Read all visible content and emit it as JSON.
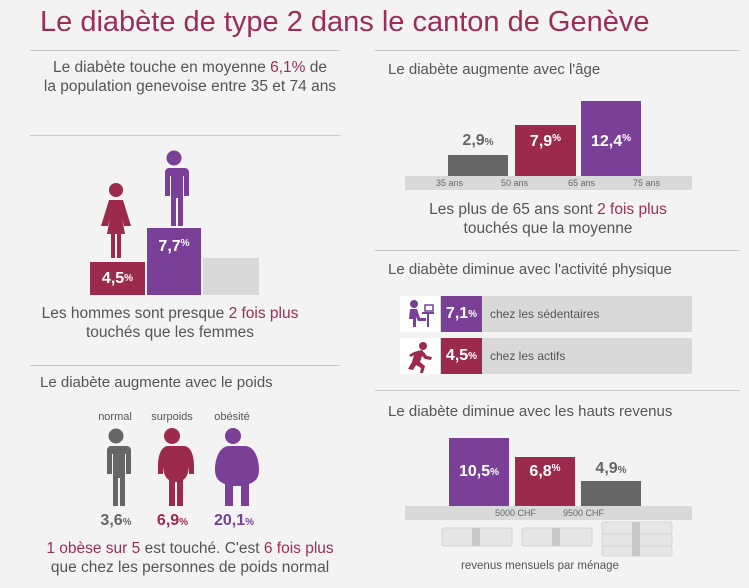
{
  "title": "Le diabète de type 2 dans le canton de Genève",
  "colors": {
    "accent": "#9b2d57",
    "gray": "#666666",
    "crimson": "#9c2a4c",
    "purple": "#7a3f96",
    "band": "#d9d9d9"
  },
  "average": {
    "line1_pre": "Le diabète touche en moyenne ",
    "line1_hl": "6,1%",
    "line1_post": " de",
    "line2": "la population genevoise entre 35 et 74 ans"
  },
  "gender": {
    "women": {
      "value": "4,5",
      "unit": "%",
      "icon": "woman-icon"
    },
    "men": {
      "value": "7,7",
      "unit": "%",
      "icon": "man-icon"
    },
    "caption_pre": "Les hommes sont presque ",
    "caption_hl": "2 fois plus",
    "caption_line2": "touchés que les femmes"
  },
  "weight": {
    "heading": "Le diabète augmente avec le poids",
    "groups": [
      {
        "label": "normal",
        "value": "3,6",
        "unit": "%"
      },
      {
        "label": "surpoids",
        "value": "6,9",
        "unit": "%"
      },
      {
        "label": "obésité",
        "value": "20,1",
        "unit": "%"
      }
    ],
    "caption_hl1": "1 obèse sur 5",
    "caption_mid": " est touché. C'est ",
    "caption_hl2": "6 fois plus",
    "caption_line2": "que chez les personnes de poids normal"
  },
  "age": {
    "heading": "Le diabète augmente avec l'âge",
    "bars": [
      {
        "value": "2,9",
        "unit": "%"
      },
      {
        "value": "7,9",
        "unit": "%"
      },
      {
        "value": "12,4",
        "unit": "%"
      }
    ],
    "ticks": [
      "35 ans",
      "50 ans",
      "65 ans",
      "75 ans"
    ],
    "caption_pre": "Les plus de 65 ans sont ",
    "caption_hl": "2 fois plus",
    "caption_line2": "touchés que la moyenne"
  },
  "activity": {
    "heading": "Le diabète diminue avec l'activité physique",
    "rows": [
      {
        "value": "7,1",
        "unit": "%",
        "label": "chez les sédentaires",
        "icon": "desk-worker-icon"
      },
      {
        "value": "4,5",
        "unit": "%",
        "label": "chez les actifs",
        "icon": "runner-icon"
      }
    ]
  },
  "income": {
    "heading": "Le diabète diminue avec les hauts revenus",
    "bars": [
      {
        "value": "10,5",
        "unit": "%"
      },
      {
        "value": "6,8",
        "unit": "%"
      },
      {
        "value": "4,9",
        "unit": "%"
      }
    ],
    "ticks": [
      "5000 CHF",
      "9500 CHF"
    ],
    "caption": "revenus mensuels par ménage"
  }
}
